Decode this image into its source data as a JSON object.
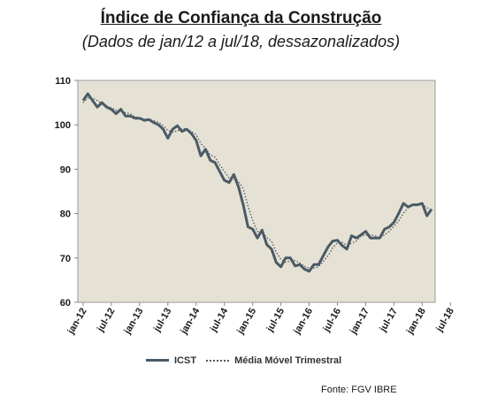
{
  "title": "Índice de Confiança da Construção",
  "subtitle": "(Dados de jan/12 a jul/18, dessazonalizados)",
  "source": "Fonte: FGV IBRE",
  "colors": {
    "plot_bg": "#e5e2d5",
    "icst": "#4a5a66",
    "mm": "#555555",
    "axis_text": "#1a1a1a"
  },
  "chart_data": {
    "type": "line",
    "xlabel": "",
    "ylabel": "",
    "ylim": [
      60,
      110
    ],
    "yticks": [
      60,
      70,
      80,
      90,
      100,
      110
    ],
    "xticks": [
      "jan-12",
      "jul-12",
      "jan-13",
      "jul-13",
      "jan-14",
      "jul-14",
      "jan-15",
      "jul-15",
      "jan-16",
      "jul-16",
      "jan-17",
      "jul-17",
      "jan-18",
      "jul-18"
    ],
    "legend": "bottom",
    "grid": false,
    "series": [
      {
        "name": "ICST",
        "values": [
          105.5,
          107.0,
          105.5,
          104.0,
          105.0,
          104.0,
          103.5,
          102.5,
          103.5,
          102.0,
          102.0,
          101.5,
          101.5,
          101.0,
          101.2,
          100.5,
          100.0,
          99.0,
          97.0,
          99.0,
          99.8,
          98.5,
          99.0,
          98.0,
          96.5,
          93.0,
          94.5,
          92.0,
          91.5,
          89.5,
          87.5,
          87.0,
          88.8,
          86.0,
          82.0,
          77.0,
          76.5,
          74.5,
          76.3,
          73.0,
          72.0,
          69.0,
          68.0,
          70.0,
          70.0,
          68.2,
          68.5,
          67.5,
          67.0,
          68.5,
          68.5,
          70.5,
          72.5,
          73.8,
          74.0,
          72.8,
          72.0,
          75.0,
          74.5,
          75.2,
          76.0,
          74.5,
          74.5,
          74.5,
          76.5,
          77.0,
          78.0,
          80.0,
          82.3,
          81.5,
          82.0,
          82.0,
          82.3,
          79.5,
          81.0
        ]
      },
      {
        "name": "Média Móvel Trimestral",
        "values": [
          105.0,
          106.0,
          106.0,
          105.5,
          104.8,
          104.2,
          103.8,
          103.3,
          103.2,
          102.7,
          102.5,
          101.8,
          101.6,
          101.3,
          101.2,
          100.9,
          100.6,
          99.8,
          98.7,
          98.4,
          98.6,
          99.1,
          99.1,
          98.5,
          97.8,
          95.8,
          94.7,
          93.2,
          92.7,
          91.0,
          89.5,
          88.0,
          87.8,
          87.3,
          85.6,
          81.7,
          78.5,
          76.0,
          75.8,
          74.6,
          73.8,
          71.3,
          69.7,
          69.0,
          69.3,
          69.4,
          68.9,
          68.1,
          67.7,
          67.7,
          68.0,
          69.2,
          70.5,
          72.3,
          73.4,
          73.5,
          72.9,
          73.3,
          73.8,
          74.9,
          75.2,
          75.2,
          75.0,
          74.5,
          75.2,
          76.0,
          77.2,
          78.3,
          80.1,
          81.3,
          81.9,
          81.8,
          82.1,
          81.3,
          80.9
        ]
      }
    ]
  },
  "legend": {
    "icst": "ICST",
    "mm": "Média Móvel Trimestral"
  }
}
